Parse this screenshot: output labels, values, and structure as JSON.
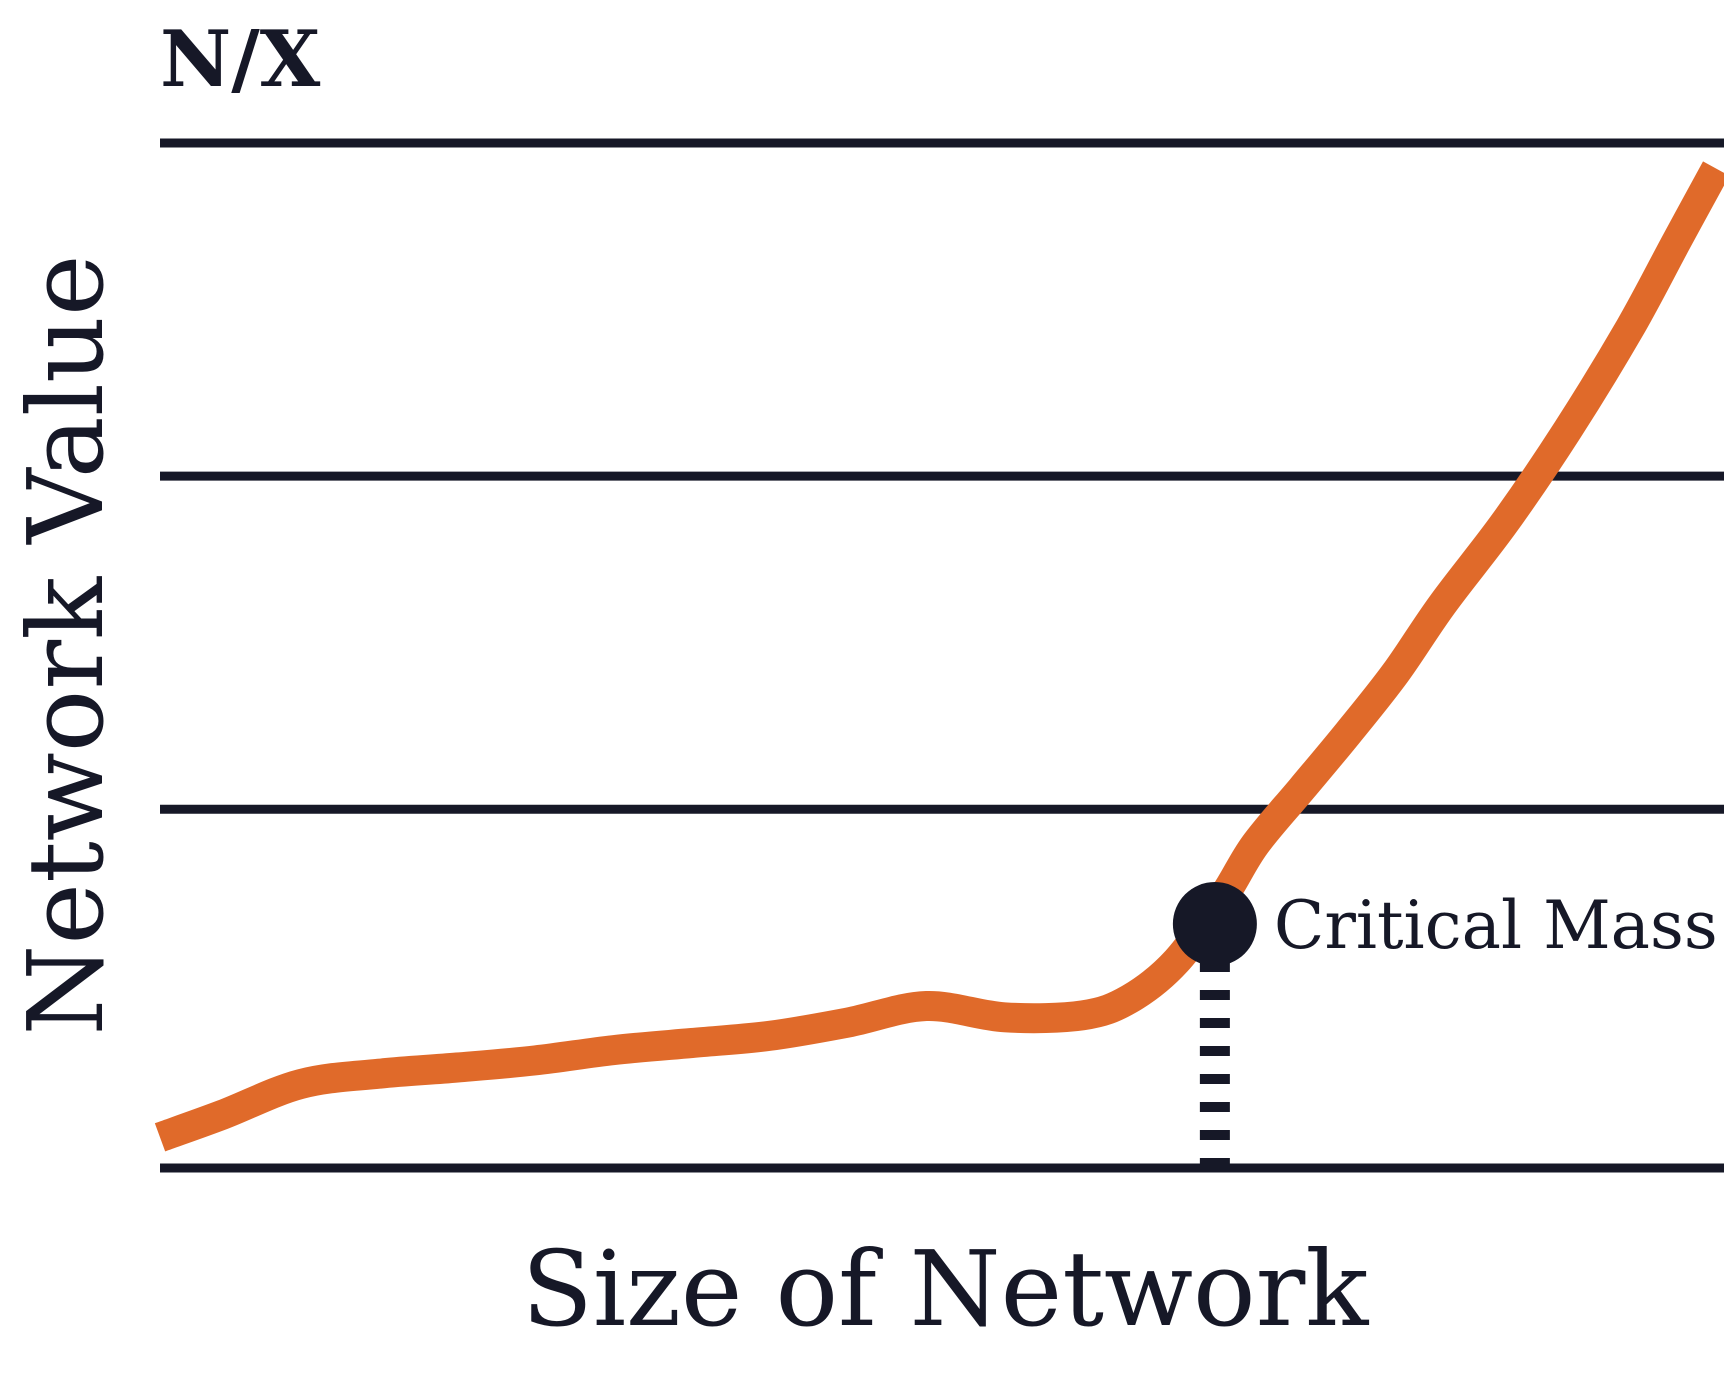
{
  "logo": "N/X",
  "chart_data": {
    "type": "line",
    "title": "",
    "xlabel": "Size of Network",
    "ylabel": "Network Value",
    "xlim": [
      0,
      100
    ],
    "ylim": [
      0,
      100
    ],
    "grid": true,
    "gridlines_y": [
      0,
      35,
      67.5,
      100
    ],
    "series": [
      {
        "color": "#E06A2A",
        "x": [
          0,
          4,
          9,
          14,
          19,
          24,
          29,
          34,
          39,
          44,
          49,
          54,
          59,
          62,
          65,
          68,
          70,
          73,
          76,
          79,
          82,
          86,
          90,
          94,
          97,
          99.5
        ],
        "y": [
          3,
          5.2,
          8.2,
          9.2,
          9.8,
          10.5,
          11.5,
          12.2,
          12.9,
          14.2,
          15.8,
          14.7,
          14.9,
          16.5,
          20.2,
          26.5,
          31.5,
          37,
          42.5,
          48.3,
          55,
          63,
          72,
          82,
          90.5,
          97.5
        ]
      }
    ],
    "annotations": [
      {
        "label": "Critical Mass",
        "x": 67,
        "y": 24
      }
    ]
  },
  "colors": {
    "line": "#E06A2A",
    "ink": "#161827"
  }
}
